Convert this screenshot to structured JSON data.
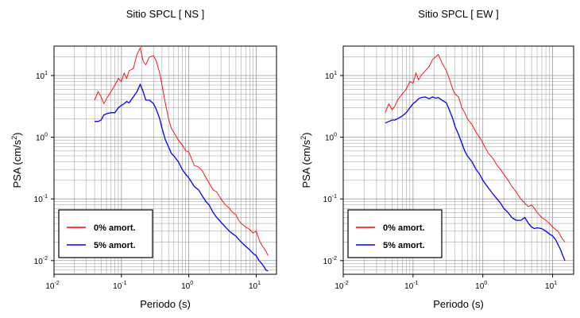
{
  "chart_data": [
    {
      "type": "line",
      "title": "Sitio SPCL [ NS ]",
      "xlabel": "Periodo (s)",
      "ylabel_main": "PSA (cm/s",
      "ylabel_sup": "2",
      "ylabel_end": ")",
      "x_scale": "log",
      "y_scale": "log",
      "xlim": [
        0.01,
        20
      ],
      "ylim": [
        0.006,
        30
      ],
      "x_ticks": [
        {
          "value": 0.01,
          "base": "10",
          "exp": "-2"
        },
        {
          "value": 0.1,
          "base": "10",
          "exp": "-1"
        },
        {
          "value": 1,
          "base": "10",
          "exp": "0"
        },
        {
          "value": 10,
          "base": "10",
          "exp": "1"
        }
      ],
      "y_ticks": [
        {
          "value": 0.01,
          "base": "10",
          "exp": "-2"
        },
        {
          "value": 0.1,
          "base": "10",
          "exp": "-1"
        },
        {
          "value": 1,
          "base": "10",
          "exp": "0"
        },
        {
          "value": 10,
          "base": "10",
          "exp": "1"
        }
      ],
      "grid": true,
      "legend_position": "bottom-left",
      "series": [
        {
          "name": "0% amort.",
          "color": "#ff0000",
          "x": [
            0.04,
            0.045,
            0.05,
            0.055,
            0.06,
            0.07,
            0.08,
            0.09,
            0.1,
            0.11,
            0.12,
            0.13,
            0.15,
            0.17,
            0.19,
            0.21,
            0.23,
            0.26,
            0.3,
            0.33,
            0.37,
            0.4,
            0.45,
            0.5,
            0.55,
            0.6,
            0.7,
            0.8,
            0.9,
            1.0,
            1.2,
            1.4,
            1.6,
            1.8,
            2.0,
            2.3,
            2.6,
            3.0,
            3.5,
            4.0,
            4.5,
            5.0,
            5.5,
            6.0,
            7.0,
            8.0,
            9.0,
            10,
            11,
            12,
            13,
            14,
            15
          ],
          "y": [
            4.0,
            5.5,
            4.5,
            3.5,
            4.2,
            5.5,
            7.0,
            9.0,
            8.0,
            11,
            9.0,
            12,
            13,
            22,
            28,
            17,
            15,
            20,
            21,
            17,
            11,
            7.0,
            3.5,
            2.0,
            1.4,
            1.2,
            0.9,
            0.75,
            0.6,
            0.58,
            0.35,
            0.33,
            0.28,
            0.22,
            0.18,
            0.14,
            0.13,
            0.1,
            0.08,
            0.07,
            0.06,
            0.055,
            0.045,
            0.04,
            0.035,
            0.032,
            0.028,
            0.03,
            0.022,
            0.018,
            0.016,
            0.014,
            0.012
          ]
        },
        {
          "name": "5% amort.",
          "color": "#0000ff",
          "x": [
            0.04,
            0.045,
            0.05,
            0.055,
            0.06,
            0.07,
            0.08,
            0.09,
            0.1,
            0.11,
            0.12,
            0.13,
            0.15,
            0.17,
            0.19,
            0.21,
            0.23,
            0.26,
            0.3,
            0.33,
            0.37,
            0.4,
            0.45,
            0.5,
            0.55,
            0.6,
            0.7,
            0.8,
            0.9,
            1.0,
            1.2,
            1.4,
            1.6,
            1.8,
            2.0,
            2.3,
            2.6,
            3.0,
            3.5,
            4.0,
            4.5,
            5.0,
            5.5,
            6.0,
            7.0,
            8.0,
            9.0,
            10,
            11,
            12,
            13,
            14,
            15
          ],
          "y": [
            1.8,
            1.8,
            1.9,
            2.3,
            2.4,
            2.5,
            2.5,
            3.0,
            3.3,
            3.5,
            3.8,
            3.6,
            4.5,
            5.5,
            7.2,
            5.5,
            4.0,
            4.0,
            3.5,
            2.8,
            2.0,
            1.4,
            0.9,
            0.7,
            0.55,
            0.5,
            0.4,
            0.3,
            0.25,
            0.22,
            0.16,
            0.14,
            0.11,
            0.09,
            0.08,
            0.06,
            0.05,
            0.042,
            0.035,
            0.03,
            0.027,
            0.025,
            0.022,
            0.02,
            0.017,
            0.015,
            0.013,
            0.012,
            0.01,
            0.009,
            0.008,
            0.007,
            0.0068
          ]
        }
      ]
    },
    {
      "type": "line",
      "title": "Sitio SPCL [ EW ]",
      "xlabel": "Periodo (s)",
      "ylabel_main": "PSA (cm/s",
      "ylabel_sup": "2",
      "ylabel_end": ")",
      "x_scale": "log",
      "y_scale": "log",
      "xlim": [
        0.01,
        20
      ],
      "ylim": [
        0.006,
        30
      ],
      "x_ticks": [
        {
          "value": 0.01,
          "base": "10",
          "exp": "-2"
        },
        {
          "value": 0.1,
          "base": "10",
          "exp": "-1"
        },
        {
          "value": 1,
          "base": "10",
          "exp": "0"
        },
        {
          "value": 10,
          "base": "10",
          "exp": "1"
        }
      ],
      "y_ticks": [
        {
          "value": 0.01,
          "base": "10",
          "exp": "-2"
        },
        {
          "value": 0.1,
          "base": "10",
          "exp": "-1"
        },
        {
          "value": 1,
          "base": "10",
          "exp": "0"
        },
        {
          "value": 10,
          "base": "10",
          "exp": "1"
        }
      ],
      "grid": true,
      "legend_position": "bottom-left",
      "series": [
        {
          "name": "0% amort.",
          "color": "#ff0000",
          "x": [
            0.04,
            0.045,
            0.05,
            0.055,
            0.06,
            0.07,
            0.08,
            0.09,
            0.1,
            0.11,
            0.12,
            0.13,
            0.15,
            0.17,
            0.19,
            0.21,
            0.23,
            0.26,
            0.3,
            0.33,
            0.37,
            0.4,
            0.45,
            0.5,
            0.55,
            0.6,
            0.7,
            0.8,
            0.9,
            1.0,
            1.2,
            1.4,
            1.6,
            1.8,
            2.0,
            2.3,
            2.6,
            3.0,
            3.5,
            4.0,
            4.5,
            5.0,
            5.5,
            6.0,
            7.0,
            8.0,
            9.0,
            10,
            11,
            12,
            13,
            14,
            15
          ],
          "y": [
            2.5,
            3.5,
            2.8,
            3.2,
            4.0,
            5.0,
            6.0,
            8.0,
            7.5,
            11,
            8.5,
            10,
            12,
            14,
            18,
            20,
            22,
            16,
            12,
            9.0,
            6.0,
            5.0,
            4.5,
            3.0,
            2.5,
            2.0,
            1.6,
            1.2,
            1.0,
            0.8,
            0.55,
            0.45,
            0.35,
            0.3,
            0.25,
            0.2,
            0.16,
            0.13,
            0.1,
            0.085,
            0.075,
            0.08,
            0.07,
            0.06,
            0.05,
            0.045,
            0.04,
            0.035,
            0.032,
            0.03,
            0.025,
            0.022,
            0.02
          ]
        },
        {
          "name": "5% amort.",
          "color": "#0000ff",
          "x": [
            0.04,
            0.045,
            0.05,
            0.055,
            0.06,
            0.07,
            0.08,
            0.09,
            0.1,
            0.11,
            0.12,
            0.13,
            0.15,
            0.17,
            0.19,
            0.21,
            0.23,
            0.26,
            0.3,
            0.33,
            0.37,
            0.4,
            0.45,
            0.5,
            0.55,
            0.6,
            0.7,
            0.8,
            0.9,
            1.0,
            1.2,
            1.4,
            1.6,
            1.8,
            2.0,
            2.3,
            2.6,
            3.0,
            3.5,
            4.0,
            4.5,
            5.0,
            5.5,
            6.0,
            7.0,
            8.0,
            9.0,
            10,
            11,
            12,
            13,
            14,
            15
          ],
          "y": [
            1.7,
            1.8,
            1.9,
            1.9,
            2.0,
            2.2,
            2.5,
            3.0,
            3.5,
            3.8,
            4.2,
            4.4,
            4.5,
            4.2,
            4.5,
            4.3,
            4.4,
            4.0,
            3.6,
            2.8,
            2.0,
            1.5,
            1.1,
            0.8,
            0.6,
            0.5,
            0.4,
            0.3,
            0.25,
            0.2,
            0.15,
            0.12,
            0.1,
            0.085,
            0.07,
            0.06,
            0.05,
            0.045,
            0.045,
            0.05,
            0.04,
            0.035,
            0.033,
            0.034,
            0.033,
            0.03,
            0.027,
            0.025,
            0.022,
            0.018,
            0.015,
            0.012,
            0.01
          ]
        }
      ]
    }
  ]
}
